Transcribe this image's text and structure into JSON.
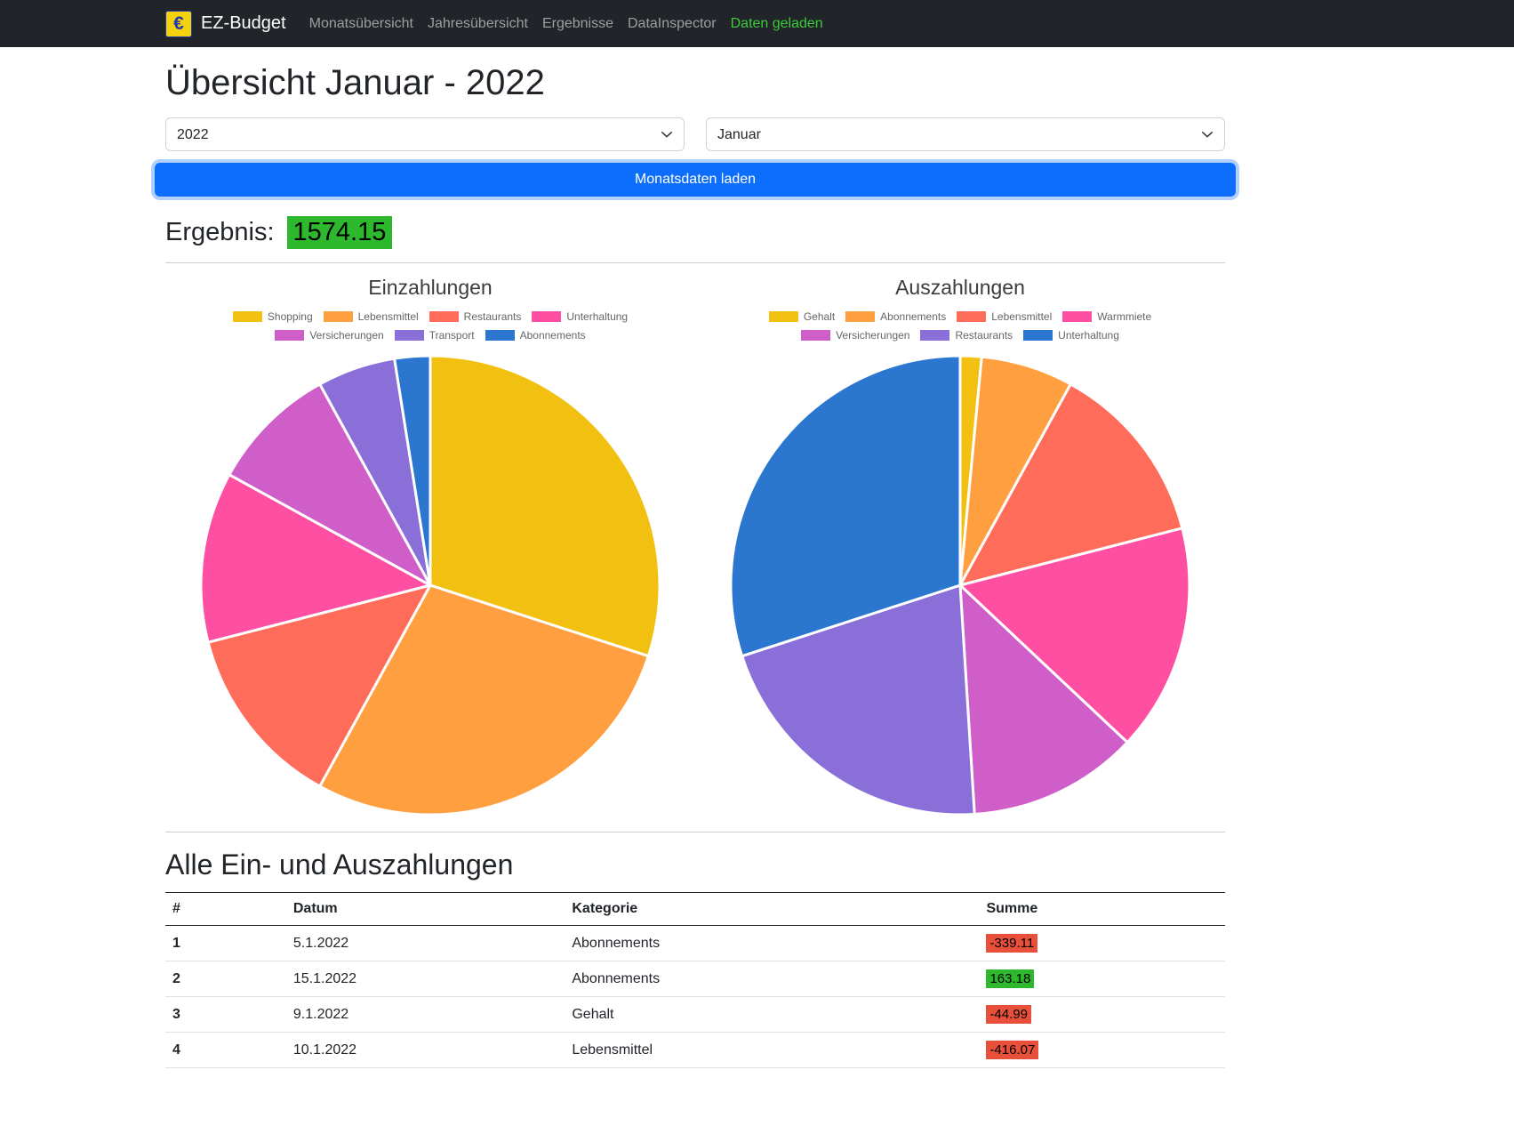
{
  "navbar": {
    "logo_symbol": "€",
    "brand": "EZ-Budget",
    "links": [
      {
        "label": "Monatsübersicht"
      },
      {
        "label": "Jahresübersicht"
      },
      {
        "label": "Ergebnisse"
      },
      {
        "label": "DataInspector"
      }
    ],
    "status": "Daten geladen"
  },
  "page": {
    "title": "Übersicht Januar - 2022",
    "year_select": "2022",
    "month_select": "Januar",
    "load_button": "Monatsdaten laden",
    "result_label": "Ergebnis:",
    "result_value": "1574.15"
  },
  "colors": {
    "accent_blue": "#0d6efd",
    "positive_bg": "#2eb82e",
    "negative_bg": "#e8503c",
    "status_green": "#3bcb3b",
    "navbar_bg": "#212529"
  },
  "chart_data": [
    {
      "type": "pie",
      "title": "Einzahlungen",
      "labels": [
        "Shopping",
        "Lebensmittel",
        "Restaurants",
        "Unterhaltung",
        "Versicherungen",
        "Transport",
        "Abonnements"
      ],
      "values": [
        30,
        28,
        13,
        12,
        9,
        5.5,
        2.5
      ],
      "colors": [
        "#f2c010",
        "#ff9f40",
        "#ff6d5a",
        "#ff4fa3",
        "#cf5ec9",
        "#8b6fd8",
        "#2b77d0"
      ],
      "legend_position": "top"
    },
    {
      "type": "pie",
      "title": "Auszahlungen",
      "labels": [
        "Gehalt",
        "Abonnements",
        "Lebensmittel",
        "Warmmiete",
        "Versicherungen",
        "Restaurants",
        "Unterhaltung"
      ],
      "values": [
        1.5,
        6.5,
        13,
        16,
        12,
        21,
        30
      ],
      "colors": [
        "#f2c010",
        "#ff9f40",
        "#ff6d5a",
        "#ff4fa3",
        "#cf5ec9",
        "#8b6fd8",
        "#2b77d0"
      ],
      "legend_position": "top"
    }
  ],
  "table": {
    "title": "Alle Ein- und Auszahlungen",
    "headers": [
      "#",
      "Datum",
      "Kategorie",
      "Summe"
    ],
    "rows": [
      {
        "num": "1",
        "datum": "5.1.2022",
        "kategorie": "Abonnements",
        "summe": "-339.11"
      },
      {
        "num": "2",
        "datum": "15.1.2022",
        "kategorie": "Abonnements",
        "summe": "163.18"
      },
      {
        "num": "3",
        "datum": "9.1.2022",
        "kategorie": "Gehalt",
        "summe": "-44.99"
      },
      {
        "num": "4",
        "datum": "10.1.2022",
        "kategorie": "Lebensmittel",
        "summe": "-416.07"
      }
    ]
  }
}
